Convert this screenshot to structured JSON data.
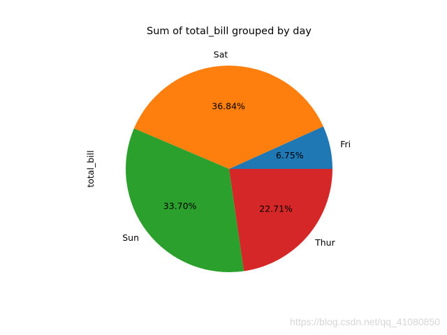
{
  "chart_data": {
    "type": "pie",
    "title": "Sum of total_bill grouped by day",
    "ylabel": "total_bill",
    "slices": [
      {
        "label": "Fri",
        "percent": 6.75,
        "pct_text": "6.75%",
        "color": "#1f77b4"
      },
      {
        "label": "Sat",
        "percent": 36.84,
        "pct_text": "36.84%",
        "color": "#ff7f0e"
      },
      {
        "label": "Sun",
        "percent": 33.7,
        "pct_text": "33.70%",
        "color": "#2ca02c"
      },
      {
        "label": "Thur",
        "percent": 22.71,
        "pct_text": "22.71%",
        "color": "#d62728"
      }
    ],
    "start_angle_deg": 0,
    "direction": "counterclockwise"
  },
  "watermark": "https://blog.csdn.net/qq_41080850"
}
